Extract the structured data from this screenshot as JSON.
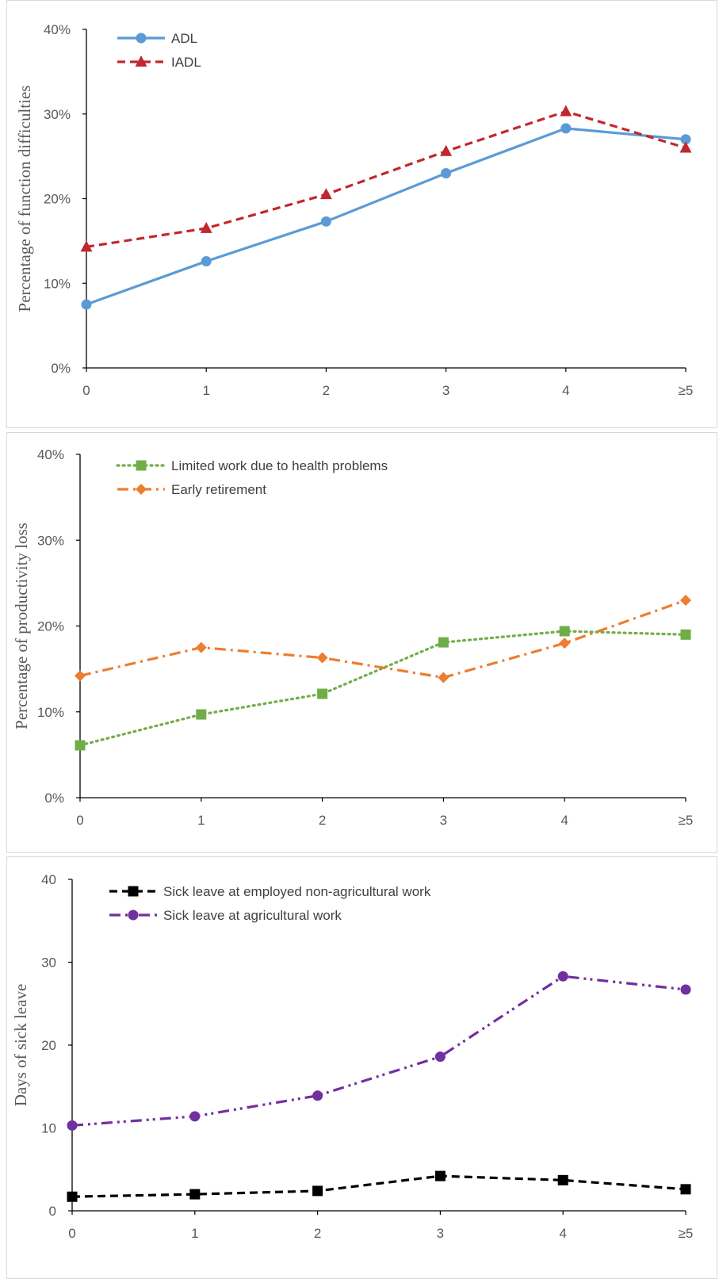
{
  "chart_data": [
    {
      "type": "line",
      "categories": [
        "0",
        "1",
        "2",
        "3",
        "4",
        "≥5"
      ],
      "ylabel": "Percentage of function difficulties",
      "ylim": [
        0,
        40
      ],
      "yticks": [
        "0%",
        "10%",
        "20%",
        "30%",
        "40%"
      ],
      "grid": false,
      "legend_position": "top-left",
      "series": [
        {
          "name": "ADL",
          "values": [
            7.5,
            12.6,
            17.3,
            23.0,
            28.3,
            27.0
          ],
          "color": "#5B9BD5",
          "marker": "circle",
          "dash": "solid"
        },
        {
          "name": "IADL",
          "values": [
            14.3,
            16.5,
            20.5,
            25.6,
            30.3,
            26.0
          ],
          "color": "#C0282E",
          "marker": "triangle",
          "dash": "dashed"
        }
      ]
    },
    {
      "type": "line",
      "categories": [
        "0",
        "1",
        "2",
        "3",
        "4",
        "≥5"
      ],
      "ylabel": "Percentage of productivity loss",
      "ylim": [
        0,
        40
      ],
      "yticks": [
        "0%",
        "10%",
        "20%",
        "30%",
        "40%"
      ],
      "grid": false,
      "legend_position": "top-left",
      "series": [
        {
          "name": "Limited work due to health problems",
          "values": [
            6.1,
            9.7,
            12.1,
            18.1,
            19.4,
            19.0
          ],
          "color": "#70AD47",
          "marker": "square",
          "dash": "dotted"
        },
        {
          "name": "Early retirement",
          "values": [
            14.2,
            17.5,
            16.3,
            14.0,
            18.0,
            23.0
          ],
          "color": "#ED7D31",
          "marker": "diamond",
          "dash": "dashdot"
        }
      ]
    },
    {
      "type": "line",
      "categories": [
        "0",
        "1",
        "2",
        "3",
        "4",
        "≥5"
      ],
      "ylabel": "Days of sick leave",
      "ylim": [
        0,
        40
      ],
      "yticks": [
        "0",
        "10",
        "20",
        "30",
        "40"
      ],
      "grid": false,
      "legend_position": "top-left",
      "series": [
        {
          "name": "Sick leave at employed non-agricultural work",
          "values": [
            1.7,
            2.0,
            2.4,
            4.2,
            3.7,
            2.6
          ],
          "color": "#000000",
          "marker": "square",
          "dash": "dashed"
        },
        {
          "name": "Sick leave at agricultural work",
          "values": [
            10.3,
            11.4,
            13.9,
            18.6,
            28.3,
            26.7
          ],
          "color": "#7030A0",
          "marker": "circle",
          "dash": "dashdotdot"
        }
      ]
    }
  ]
}
